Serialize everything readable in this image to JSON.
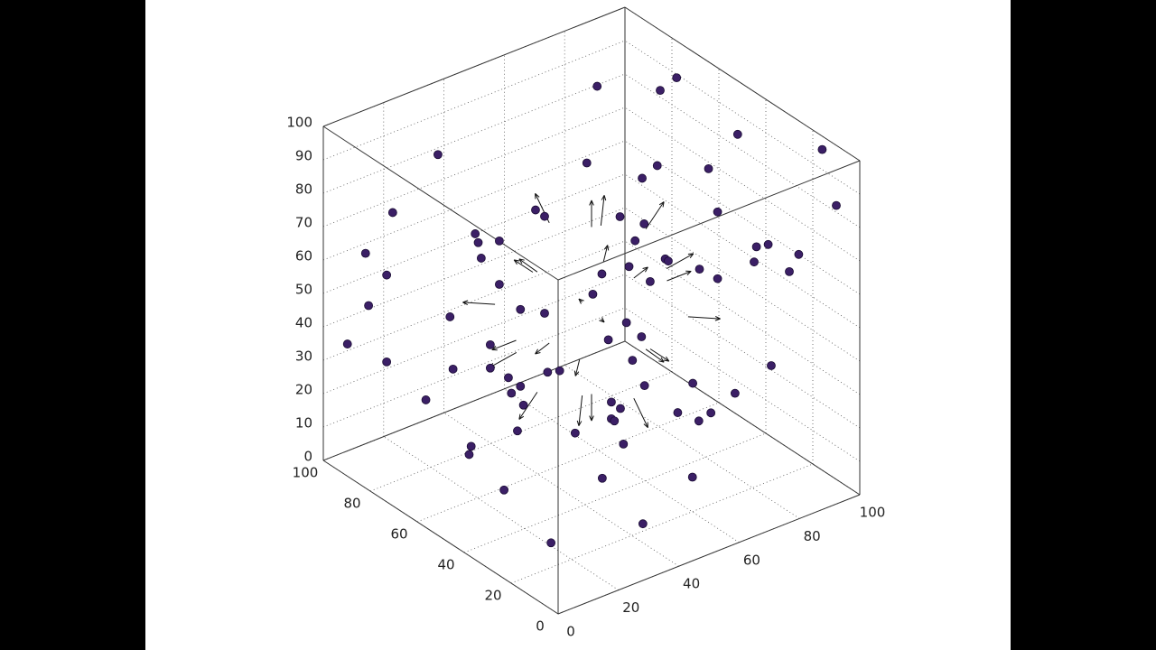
{
  "chart_data": {
    "type": "scatter3d",
    "xlim": [
      0,
      100
    ],
    "ylim": [
      0,
      100
    ],
    "zlim": [
      0,
      100
    ],
    "xticks": [
      0,
      20,
      40,
      60,
      80,
      100
    ],
    "yticks": [
      0,
      20,
      40,
      60,
      80,
      100
    ],
    "zticks": [
      0,
      10,
      20,
      30,
      40,
      50,
      60,
      70,
      80,
      90,
      100
    ],
    "grid": true,
    "color": "#3b1f66",
    "points": {
      "x": [
        8,
        14,
        23,
        21,
        15,
        21,
        34,
        38,
        42,
        43,
        27,
        28,
        35,
        29,
        35,
        42,
        50,
        32,
        32,
        38,
        42,
        39,
        43,
        41,
        51,
        55,
        47,
        50,
        35,
        32,
        28,
        21,
        52,
        46,
        71,
        29,
        45,
        41,
        42,
        44,
        41,
        52,
        48,
        63,
        70,
        74,
        68,
        82,
        94,
        51,
        40,
        46,
        66,
        69,
        78,
        85,
        80,
        75,
        83,
        90,
        91,
        78,
        84,
        84,
        81,
        59,
        64,
        64,
        83,
        100,
        100,
        100,
        100,
        100,
        100,
        100,
        100,
        100,
        100
      ],
      "y": [
        100,
        100,
        100,
        100,
        100,
        100,
        100,
        100,
        100,
        100,
        70,
        70,
        70,
        70,
        70,
        70,
        70,
        70,
        70,
        70,
        70,
        70,
        70,
        70,
        70,
        70,
        70,
        70,
        82,
        79,
        59,
        30,
        48,
        23,
        34,
        30,
        30,
        30,
        30,
        30,
        30,
        30,
        30,
        30,
        30,
        30,
        30,
        30,
        30,
        30,
        30,
        30,
        70,
        70,
        70,
        70,
        70,
        70,
        70,
        70,
        70,
        40,
        40,
        40,
        40,
        40,
        40,
        70,
        90,
        85,
        78,
        52,
        16,
        10,
        44,
        39,
        45,
        26,
        30
      ],
      "z": [
        32,
        57,
        66,
        48,
        41,
        22,
        6,
        78,
        28,
        12,
        72,
        69,
        67,
        64,
        54,
        44,
        40,
        37,
        30,
        25,
        21,
        20,
        15,
        8,
        22,
        21,
        72,
        69,
        0,
        0,
        0,
        0,
        0,
        0,
        0,
        30,
        21,
        30,
        29,
        32,
        35,
        36,
        45,
        24,
        19,
        20,
        31,
        23,
        27,
        51,
        54,
        57,
        40,
        45,
        44,
        37,
        51,
        60,
        55,
        42,
        41,
        57,
        52,
        72,
        86,
        91,
        93,
        80,
        87,
        82,
        89,
        84,
        96,
        82,
        54,
        57,
        49,
        60,
        53
      ]
    },
    "quiver": {
      "x": [
        75,
        25,
        50,
        50,
        50,
        50,
        68,
        32,
        68,
        32,
        68,
        32,
        68,
        32,
        50,
        50,
        50,
        50,
        64,
        36,
        64,
        36,
        64,
        36
      ],
      "y": [
        50,
        50,
        75,
        25,
        50,
        50,
        68,
        32,
        32,
        68,
        50,
        50,
        50,
        50,
        68,
        32,
        68,
        32,
        64,
        36,
        36,
        64,
        64,
        36
      ],
      "z": [
        50,
        50,
        50,
        50,
        75,
        25,
        50,
        50,
        50,
        50,
        68,
        32,
        32,
        68,
        68,
        32,
        32,
        68,
        64,
        36,
        64,
        36,
        36,
        64
      ],
      "u": [
        8,
        -8,
        0,
        0,
        0,
        0,
        6,
        -6,
        6,
        -6,
        6,
        -6,
        6,
        -6,
        0,
        0,
        0,
        0,
        5,
        -5,
        5,
        -5,
        5,
        -5
      ],
      "v": [
        0,
        0,
        8,
        -8,
        0,
        0,
        6,
        -6,
        -6,
        6,
        0,
        0,
        0,
        0,
        6,
        -6,
        6,
        -6,
        5,
        -5,
        -5,
        5,
        5,
        -5
      ],
      "w": [
        0,
        0,
        0,
        0,
        8,
        -8,
        0,
        0,
        0,
        0,
        6,
        -6,
        -6,
        6,
        6,
        -6,
        -6,
        6,
        5,
        -5,
        5,
        -5,
        -5,
        5
      ]
    }
  }
}
